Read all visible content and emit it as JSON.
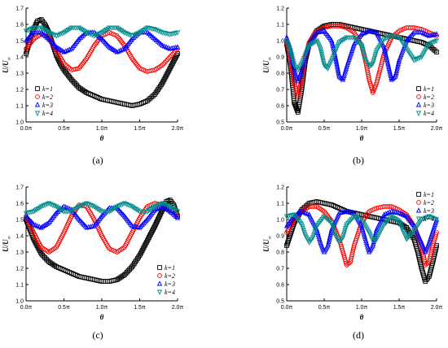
{
  "chart_data": [
    {
      "type": "scatter",
      "panel": "(a)",
      "xlabel": "θ",
      "ylabel_main": "U/U",
      "ylabel_sub": "∞",
      "ylim": [
        1.0,
        1.7
      ],
      "yticks": [
        "1.0",
        "1.1",
        "1.2",
        "1.3",
        "1.4",
        "1.5",
        "1.6",
        "1.7"
      ],
      "xticks": [
        "0.0π",
        "0.5π",
        "1.0π",
        "1.5π",
        "2.0π"
      ],
      "legend_position": "bottom-left",
      "series": [
        {
          "name": "k=1",
          "color": "#000000",
          "marker": "square",
          "x": [
            0,
            0.05,
            0.1,
            0.15,
            0.2,
            0.25,
            0.3,
            0.35,
            0.4,
            0.45,
            0.5,
            0.6,
            0.7,
            0.8,
            0.9,
            1.0,
            1.1,
            1.2,
            1.3,
            1.4,
            1.5,
            1.6,
            1.7,
            1.8,
            1.9,
            2.0
          ],
          "y": [
            1.42,
            1.5,
            1.57,
            1.62,
            1.63,
            1.6,
            1.55,
            1.48,
            1.41,
            1.36,
            1.32,
            1.26,
            1.21,
            1.18,
            1.16,
            1.14,
            1.13,
            1.12,
            1.11,
            1.1,
            1.11,
            1.13,
            1.17,
            1.24,
            1.33,
            1.42
          ]
        },
        {
          "name": "k=2",
          "color": "#ff0000",
          "marker": "circle",
          "x": [
            0,
            0.1,
            0.2,
            0.3,
            0.4,
            0.5,
            0.6,
            0.7,
            0.8,
            0.9,
            1.0,
            1.1,
            1.2,
            1.3,
            1.4,
            1.5,
            1.6,
            1.7,
            1.8,
            1.9,
            2.0
          ],
          "y": [
            1.45,
            1.51,
            1.54,
            1.52,
            1.44,
            1.36,
            1.32,
            1.33,
            1.39,
            1.47,
            1.53,
            1.55,
            1.53,
            1.47,
            1.39,
            1.33,
            1.31,
            1.32,
            1.35,
            1.4,
            1.45
          ]
        },
        {
          "name": "k=3",
          "color": "#0000ff",
          "marker": "triangle-up",
          "x": [
            0,
            0.1,
            0.2,
            0.3,
            0.4,
            0.5,
            0.6,
            0.7,
            0.8,
            0.9,
            1.0,
            1.1,
            1.2,
            1.3,
            1.4,
            1.5,
            1.6,
            1.7,
            1.8,
            1.9,
            2.0
          ],
          "y": [
            1.5,
            1.55,
            1.55,
            1.51,
            1.46,
            1.43,
            1.45,
            1.51,
            1.55,
            1.55,
            1.51,
            1.46,
            1.43,
            1.45,
            1.51,
            1.55,
            1.55,
            1.51,
            1.47,
            1.45,
            1.46
          ]
        },
        {
          "name": "k=4",
          "color": "#008b8b",
          "marker": "triangle-down",
          "x": [
            0,
            0.1,
            0.2,
            0.3,
            0.4,
            0.5,
            0.6,
            0.7,
            0.8,
            0.9,
            1.0,
            1.1,
            1.2,
            1.3,
            1.4,
            1.5,
            1.6,
            1.7,
            1.8,
            1.9,
            2.0
          ],
          "y": [
            1.56,
            1.58,
            1.58,
            1.55,
            1.53,
            1.55,
            1.58,
            1.58,
            1.55,
            1.53,
            1.55,
            1.58,
            1.58,
            1.55,
            1.53,
            1.55,
            1.58,
            1.57,
            1.55,
            1.54,
            1.55
          ]
        }
      ]
    },
    {
      "type": "scatter",
      "panel": "(b)",
      "xlabel": "θ",
      "ylabel_main": "U/U",
      "ylabel_sub": "∞",
      "ylim": [
        0.5,
        1.2
      ],
      "yticks": [
        "0.5",
        "0.6",
        "0.7",
        "0.8",
        "0.9",
        "1.0",
        "1.1",
        "1.2"
      ],
      "xticks": [
        "0.0π",
        "0.5π",
        "1.0π",
        "1.5π",
        "2.0π"
      ],
      "legend_position": "bottom-right",
      "series": [
        {
          "name": "k=1",
          "color": "#000000",
          "marker": "square",
          "x": [
            0,
            0.05,
            0.1,
            0.15,
            0.2,
            0.25,
            0.3,
            0.4,
            0.5,
            0.6,
            0.7,
            0.8,
            0.9,
            1.0,
            1.1,
            1.2,
            1.3,
            1.4,
            1.5,
            1.6,
            1.7,
            1.8,
            1.9,
            2.0
          ],
          "y": [
            0.98,
            0.85,
            0.62,
            0.56,
            0.7,
            0.88,
            0.98,
            1.06,
            1.09,
            1.1,
            1.1,
            1.09,
            1.08,
            1.07,
            1.06,
            1.05,
            1.04,
            1.03,
            1.02,
            1.01,
            1.0,
            0.99,
            0.97,
            0.93
          ]
        },
        {
          "name": "k=2",
          "color": "#ff0000",
          "marker": "circle",
          "x": [
            0,
            0.05,
            0.1,
            0.15,
            0.2,
            0.25,
            0.3,
            0.4,
            0.5,
            0.6,
            0.7,
            0.8,
            0.9,
            1.0,
            1.05,
            1.1,
            1.15,
            1.2,
            1.3,
            1.4,
            1.5,
            1.6,
            1.7,
            1.8,
            1.9,
            2.0
          ],
          "y": [
            1.0,
            0.9,
            0.74,
            0.66,
            0.76,
            0.9,
            0.99,
            1.06,
            1.08,
            1.09,
            1.09,
            1.08,
            1.05,
            0.97,
            0.88,
            0.76,
            0.68,
            0.74,
            0.92,
            1.02,
            1.06,
            1.08,
            1.08,
            1.07,
            1.05,
            1.03
          ]
        },
        {
          "name": "k=3",
          "color": "#0000ff",
          "marker": "triangle-up",
          "x": [
            0,
            0.05,
            0.1,
            0.15,
            0.2,
            0.3,
            0.4,
            0.5,
            0.6,
            0.65,
            0.7,
            0.75,
            0.8,
            0.9,
            1.0,
            1.1,
            1.2,
            1.3,
            1.35,
            1.4,
            1.45,
            1.5,
            1.6,
            1.7,
            1.8,
            1.9,
            2.0
          ],
          "y": [
            1.02,
            0.95,
            0.82,
            0.75,
            0.82,
            0.98,
            1.05,
            1.06,
            1.0,
            0.9,
            0.78,
            0.76,
            0.84,
            0.98,
            1.04,
            1.06,
            1.05,
            0.96,
            0.86,
            0.76,
            0.78,
            0.88,
            1.0,
            1.05,
            1.05,
            1.03,
            1.04
          ]
        },
        {
          "name": "k=4",
          "color": "#008b8b",
          "marker": "triangle-down",
          "x": [
            0,
            0.05,
            0.1,
            0.15,
            0.2,
            0.3,
            0.4,
            0.45,
            0.5,
            0.55,
            0.6,
            0.7,
            0.8,
            0.9,
            1.0,
            1.05,
            1.1,
            1.15,
            1.2,
            1.3,
            1.4,
            1.5,
            1.6,
            1.7,
            1.8,
            1.9,
            2.0
          ],
          "y": [
            1.0,
            0.94,
            0.85,
            0.82,
            0.86,
            0.97,
            1.0,
            0.95,
            0.85,
            0.83,
            0.88,
            0.99,
            1.02,
            1.02,
            0.97,
            0.88,
            0.84,
            0.86,
            0.94,
            1.01,
            1.03,
            1.02,
            0.95,
            0.88,
            0.9,
            0.98,
            1.0
          ]
        }
      ]
    },
    {
      "type": "scatter",
      "panel": "(c)",
      "xlabel": "θ",
      "ylabel_main": "U/U",
      "ylabel_sub": "∞",
      "ylim": [
        1.0,
        1.7
      ],
      "yticks": [
        "1.0",
        "1.1",
        "1.2",
        "1.3",
        "1.4",
        "1.5",
        "1.6",
        "1.7"
      ],
      "xticks": [
        "0.0π",
        "0.5π",
        "1.0π",
        "1.5π",
        "2.0π"
      ],
      "legend_position": "bottom-right",
      "series": [
        {
          "name": "k=1",
          "color": "#000000",
          "marker": "square",
          "x": [
            0,
            0.1,
            0.2,
            0.3,
            0.4,
            0.5,
            0.6,
            0.7,
            0.8,
            0.9,
            1.0,
            1.1,
            1.2,
            1.3,
            1.4,
            1.5,
            1.6,
            1.7,
            1.8,
            1.85,
            1.9,
            1.95,
            2.0
          ],
          "y": [
            1.5,
            1.38,
            1.29,
            1.24,
            1.21,
            1.19,
            1.17,
            1.15,
            1.14,
            1.13,
            1.12,
            1.12,
            1.13,
            1.16,
            1.21,
            1.28,
            1.37,
            1.46,
            1.56,
            1.61,
            1.62,
            1.59,
            1.52
          ]
        },
        {
          "name": "k=2",
          "color": "#ff0000",
          "marker": "circle",
          "x": [
            0,
            0.1,
            0.2,
            0.3,
            0.4,
            0.5,
            0.6,
            0.7,
            0.8,
            0.9,
            1.0,
            1.1,
            1.2,
            1.3,
            1.4,
            1.5,
            1.6,
            1.7,
            1.8,
            1.9,
            2.0
          ],
          "y": [
            1.52,
            1.42,
            1.33,
            1.3,
            1.33,
            1.42,
            1.52,
            1.59,
            1.58,
            1.5,
            1.4,
            1.32,
            1.3,
            1.33,
            1.42,
            1.51,
            1.58,
            1.6,
            1.59,
            1.56,
            1.53
          ]
        },
        {
          "name": "k=3",
          "color": "#0000ff",
          "marker": "triangle-up",
          "x": [
            0,
            0.1,
            0.2,
            0.3,
            0.4,
            0.5,
            0.6,
            0.7,
            0.8,
            0.9,
            1.0,
            1.1,
            1.2,
            1.3,
            1.4,
            1.5,
            1.6,
            1.7,
            1.8,
            1.9,
            2.0
          ],
          "y": [
            1.52,
            1.47,
            1.45,
            1.48,
            1.54,
            1.58,
            1.56,
            1.5,
            1.45,
            1.46,
            1.52,
            1.57,
            1.57,
            1.52,
            1.46,
            1.45,
            1.5,
            1.56,
            1.58,
            1.55,
            1.51
          ]
        },
        {
          "name": "k=4",
          "color": "#008b8b",
          "marker": "triangle-down",
          "x": [
            0,
            0.1,
            0.2,
            0.3,
            0.4,
            0.5,
            0.6,
            0.7,
            0.8,
            0.9,
            1.0,
            1.1,
            1.2,
            1.3,
            1.4,
            1.5,
            1.6,
            1.7,
            1.8,
            1.9,
            2.0
          ],
          "y": [
            1.54,
            1.55,
            1.58,
            1.6,
            1.58,
            1.55,
            1.55,
            1.58,
            1.6,
            1.58,
            1.55,
            1.55,
            1.58,
            1.6,
            1.58,
            1.55,
            1.55,
            1.58,
            1.6,
            1.58,
            1.55
          ]
        }
      ]
    },
    {
      "type": "scatter",
      "panel": "(d)",
      "xlabel": "θ",
      "ylabel_main": "U/U",
      "ylabel_sub": "∞",
      "ylim": [
        0.5,
        1.2
      ],
      "yticks": [
        "0.5",
        "0.6",
        "0.7",
        "0.8",
        "0.9",
        "1.0",
        "1.1",
        "1.2"
      ],
      "xticks": [
        "0.0π",
        "0.5π",
        "1.0π",
        "1.5π",
        "2.0π"
      ],
      "legend_position": "top-right",
      "series": [
        {
          "name": "k=1",
          "color": "#000000",
          "marker": "square",
          "x": [
            0,
            0.1,
            0.2,
            0.3,
            0.4,
            0.5,
            0.6,
            0.7,
            0.8,
            0.9,
            1.0,
            1.1,
            1.2,
            1.3,
            1.4,
            1.5,
            1.6,
            1.7,
            1.75,
            1.8,
            1.85,
            1.9,
            1.95,
            2.0
          ],
          "y": [
            0.84,
            0.98,
            1.06,
            1.1,
            1.11,
            1.1,
            1.09,
            1.07,
            1.05,
            1.04,
            1.03,
            1.02,
            1.01,
            1.0,
            0.99,
            0.98,
            0.95,
            0.88,
            0.8,
            0.7,
            0.62,
            0.65,
            0.74,
            0.84
          ]
        },
        {
          "name": "k=2",
          "color": "#ff0000",
          "marker": "circle",
          "x": [
            0,
            0.1,
            0.2,
            0.3,
            0.4,
            0.5,
            0.6,
            0.7,
            0.75,
            0.8,
            0.85,
            0.9,
            1.0,
            1.1,
            1.2,
            1.3,
            1.4,
            1.5,
            1.6,
            1.7,
            1.8,
            1.85,
            1.9,
            1.95,
            2.0
          ],
          "y": [
            0.92,
            1.0,
            1.05,
            1.08,
            1.08,
            1.05,
            0.99,
            0.88,
            0.8,
            0.72,
            0.74,
            0.84,
            0.98,
            1.05,
            1.07,
            1.08,
            1.08,
            1.06,
            1.03,
            0.96,
            0.84,
            0.72,
            0.74,
            0.84,
            0.92
          ]
        },
        {
          "name": "k=3",
          "color": "#0000ff",
          "marker": "triangle-up",
          "x": [
            0,
            0.1,
            0.2,
            0.3,
            0.4,
            0.45,
            0.5,
            0.55,
            0.6,
            0.7,
            0.8,
            0.9,
            1.0,
            1.05,
            1.1,
            1.15,
            1.2,
            1.3,
            1.4,
            1.5,
            1.6,
            1.7,
            1.8,
            1.85,
            1.9,
            2.0
          ],
          "y": [
            0.96,
            1.02,
            1.05,
            1.03,
            0.94,
            0.86,
            0.8,
            0.84,
            0.94,
            1.04,
            1.05,
            1.04,
            0.96,
            0.88,
            0.8,
            0.84,
            0.94,
            1.03,
            1.05,
            1.04,
            1.02,
            0.96,
            0.86,
            0.8,
            0.86,
            1.0
          ]
        },
        {
          "name": "k=4",
          "color": "#008b8b",
          "marker": "triangle-down",
          "x": [
            0,
            0.1,
            0.2,
            0.25,
            0.3,
            0.35,
            0.4,
            0.5,
            0.6,
            0.65,
            0.7,
            0.75,
            0.8,
            0.9,
            1.0,
            1.1,
            1.15,
            1.2,
            1.3,
            1.4,
            1.5,
            1.55,
            1.6,
            1.7,
            1.8,
            1.9,
            2.0
          ],
          "y": [
            1.02,
            1.03,
            0.97,
            0.9,
            0.86,
            0.89,
            0.96,
            1.02,
            0.98,
            0.9,
            0.86,
            0.89,
            0.97,
            1.02,
            1.0,
            0.92,
            0.87,
            0.88,
            0.97,
            1.02,
            0.99,
            0.93,
            0.88,
            0.93,
            1.0,
            1.02,
            1.0
          ]
        }
      ]
    }
  ]
}
